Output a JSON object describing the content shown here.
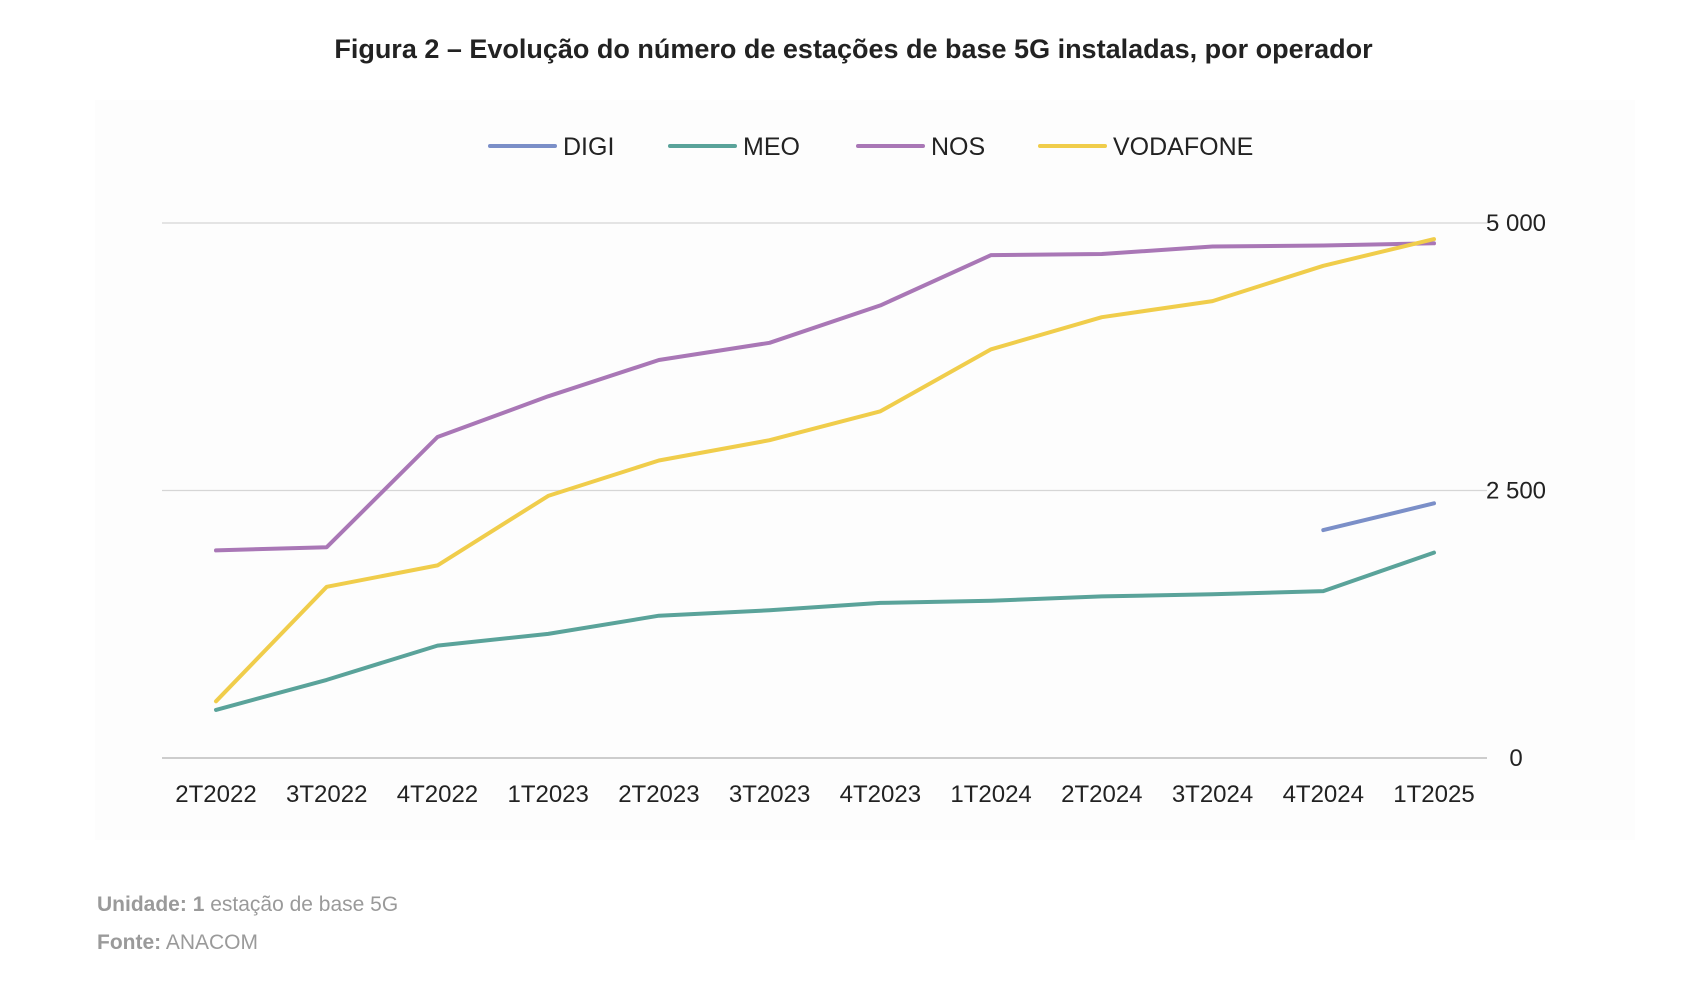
{
  "chart_data": {
    "type": "line",
    "title": "Figura 2 – Evolução do número de estações de base 5G instaladas, por operador",
    "categories": [
      "2T2022",
      "3T2022",
      "4T2022",
      "1T2023",
      "2T2023",
      "3T2023",
      "4T2023",
      "1T2024",
      "2T2024",
      "3T2024",
      "4T2024",
      "1T2025"
    ],
    "series": [
      {
        "name": "DIGI",
        "color": "#7b8fc8",
        "values": [
          null,
          null,
          null,
          null,
          null,
          null,
          null,
          null,
          null,
          null,
          2130,
          2380
        ]
      },
      {
        "name": "MEO",
        "color": "#5aa39a",
        "values": [
          450,
          730,
          1050,
          1160,
          1330,
          1380,
          1450,
          1470,
          1510,
          1530,
          1560,
          1920
        ]
      },
      {
        "name": "NOS",
        "color": "#a977b6",
        "values": [
          1940,
          1970,
          3000,
          3380,
          3720,
          3880,
          4230,
          4700,
          4710,
          4780,
          4790,
          4810
        ]
      },
      {
        "name": "VODAFONE",
        "color": "#f0cd4b",
        "values": [
          530,
          1600,
          1800,
          2450,
          2780,
          2970,
          3240,
          3820,
          4120,
          4270,
          4600,
          4850
        ]
      }
    ],
    "y_ticks": [
      {
        "value": 0,
        "label": "0"
      },
      {
        "value": 2500,
        "label": "2 500"
      },
      {
        "value": 5000,
        "label": "5 000"
      }
    ],
    "ylim": [
      0,
      5000
    ],
    "y_axis_side": "right",
    "grid": true,
    "legend_position": "top"
  },
  "footer": {
    "unit_label": "Unidade:",
    "unit_value_bold": "1",
    "unit_value": " estação de base 5G",
    "source_label": "Fonte:",
    "source_value": " ANACOM"
  }
}
